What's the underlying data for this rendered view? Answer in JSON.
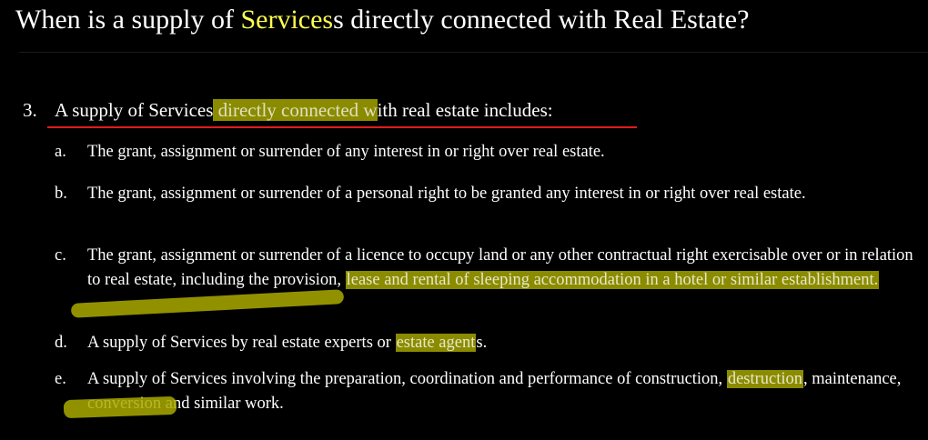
{
  "slide": {
    "title_before": "When is a supply of ",
    "title_accent": "Services",
    "title_after": "s directly connected with Real Estate?",
    "lead_number": "3.",
    "lead_text_1": "A supply of Services",
    "lead_text_hl": " directly connected w",
    "lead_text_2": "ith real estate includes:",
    "items": [
      {
        "letter": "a.",
        "text": "The grant, assignment or surrender of any interest in or right over real estate."
      },
      {
        "letter": "b.",
        "text": "The grant, assignment or surrender of a personal right to be granted any interest in or right over real estate."
      },
      {
        "letter": "c.",
        "text_1": "The grant, assignment or surrender of a licence to occupy land or any other contractual right exercisable over or in relation to real estate, including the provision, ",
        "text_hl": "lease and rental of sleeping accommodation in a hotel or similar establishment.",
        "text_2": ""
      },
      {
        "letter": "d.",
        "text_1": "A supply of Services by real estate experts or ",
        "text_hl": "estate agent",
        "text_2": "s."
      },
      {
        "letter": "e.",
        "text_1": "A supply of Services involving the preparation, coordination and performance of construction, ",
        "text_hl": "destruction",
        "text_2": ", maintenance, conversion and similar work."
      }
    ]
  },
  "colors": {
    "background": "#000000",
    "text": "#ffffff",
    "title_accent": "#ffff4d",
    "highlighter": "#aaaa00",
    "underline": "#e21b1b"
  }
}
